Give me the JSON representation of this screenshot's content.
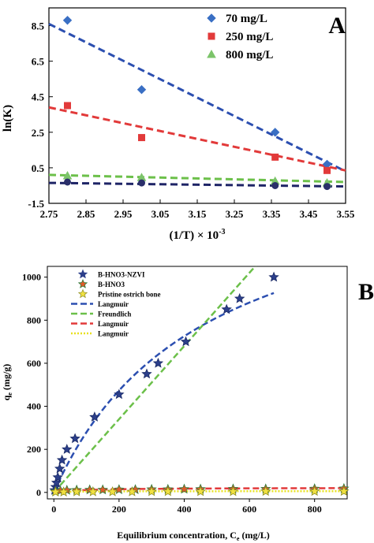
{
  "chart_data": [
    {
      "panel": "A",
      "type": "scatter",
      "xlabel": "(1/T) × 10",
      "xlabel_sup": "-3",
      "ylabel": "ln(K)",
      "xlim": [
        2.75,
        3.55
      ],
      "ylim": [
        -1.5,
        9.5
      ],
      "xticks": [
        "2.75",
        "2.85",
        "2.95",
        "3.05",
        "3.15",
        "3.25",
        "3.35",
        "3.45",
        "3.55"
      ],
      "xtick_values": [
        2.75,
        2.85,
        2.95,
        3.05,
        3.15,
        3.25,
        3.35,
        3.45,
        3.55
      ],
      "yticks": [
        "8.5",
        "6.5",
        "4.5",
        "2.5",
        "0.5",
        "-1.5"
      ],
      "ytick_values": [
        8.5,
        6.5,
        4.5,
        2.5,
        0.5,
        -1.5
      ],
      "series": [
        {
          "name": "70 mg/L",
          "marker": "diamond",
          "color": "#3a6fc4",
          "x": [
            2.8,
            3.0,
            3.36,
            3.5
          ],
          "y": [
            8.8,
            4.9,
            2.5,
            0.7
          ],
          "fit": {
            "x": [
              2.75,
              3.55
            ],
            "y": [
              8.6,
              0.3
            ],
            "color": "#2c4fb0"
          }
        },
        {
          "name": "250 mg/L",
          "marker": "square",
          "color": "#e23a3a",
          "x": [
            2.8,
            3.0,
            3.36,
            3.5
          ],
          "y": [
            4.0,
            2.2,
            1.1,
            0.35
          ],
          "fit": {
            "x": [
              2.75,
              3.55
            ],
            "y": [
              3.9,
              0.35
            ],
            "color": "#e23a3a"
          }
        },
        {
          "name": "800 mg/L",
          "marker": "triangle",
          "color": "#7cc46a",
          "x": [
            2.8,
            3.0,
            3.36,
            3.5
          ],
          "y": [
            0.05,
            -0.05,
            -0.25,
            -0.35
          ],
          "fit": {
            "x": [
              2.75,
              3.55
            ],
            "y": [
              0.1,
              -0.3
            ],
            "color": "#6cc04a"
          }
        },
        {
          "name": "",
          "marker": "circle",
          "color": "#2a2f6a",
          "x": [
            2.8,
            3.0,
            3.36,
            3.5
          ],
          "y": [
            -0.3,
            -0.35,
            -0.5,
            -0.55
          ],
          "fit": {
            "x": [
              2.75,
              3.55
            ],
            "y": [
              -0.35,
              -0.55
            ],
            "color": "#1e2466"
          }
        }
      ]
    },
    {
      "panel": "B",
      "type": "scatter",
      "xlabel": "Equilibrium concentration, C",
      "xlabel_sub": "e",
      "xlabel_unit": " (mg/L)",
      "ylabel": "q",
      "ylabel_sub": "e",
      "ylabel_unit": " (mg/g)",
      "xlim": [
        -20,
        900
      ],
      "ylim": [
        -30,
        1050
      ],
      "xticks": [
        "0",
        "200",
        "400",
        "600",
        "800"
      ],
      "xtick_values": [
        0,
        200,
        400,
        600,
        800
      ],
      "yticks": [
        "0",
        "200",
        "400",
        "600",
        "800",
        "1000"
      ],
      "ytick_values": [
        0,
        200,
        400,
        600,
        800,
        1000
      ],
      "legend": {
        "placement": "top-left",
        "entries": [
          {
            "label": "B-HNO3-NZVI",
            "kind": "star",
            "fill": "#2c3f8a",
            "stroke": "#2c3f8a"
          },
          {
            "label": "B-HNO3",
            "kind": "star",
            "fill": "#e05a2a",
            "stroke": "#2c7a3a"
          },
          {
            "label": "Pristine ostrich bone",
            "kind": "star",
            "fill": "#f0e040",
            "stroke": "#999933"
          },
          {
            "label": "Langmuir",
            "kind": "line",
            "color": "#2c4fb0",
            "dash": "8,4"
          },
          {
            "label": "Freundlich",
            "kind": "line",
            "color": "#6cc04a",
            "dash": "8,4"
          },
          {
            "label": "Langmuir",
            "kind": "line",
            "color": "#e23a3a",
            "dash": "8,4"
          },
          {
            "label": "Langmuir",
            "kind": "line",
            "color": "#e8e020",
            "dash": "2,2"
          }
        ]
      },
      "series": [
        {
          "name": "B-HNO3-NZVI",
          "marker": "star",
          "fill": "#2c3f8a",
          "x": [
            2,
            5,
            8,
            12,
            18,
            25,
            40,
            65,
            125,
            200,
            285,
            320,
            405,
            530,
            570,
            675
          ],
          "y": [
            10,
            25,
            45,
            70,
            110,
            150,
            200,
            250,
            350,
            455,
            550,
            600,
            700,
            850,
            900,
            1000
          ]
        },
        {
          "name": "B-HNO3",
          "marker": "star",
          "fill": "#e05a2a",
          "x": [
            5,
            20,
            40,
            70,
            110,
            150,
            200,
            250,
            300,
            350,
            400,
            450,
            550,
            650,
            800,
            890
          ],
          "y": [
            5,
            8,
            10,
            11,
            12,
            12,
            13,
            13,
            14,
            14,
            15,
            15,
            16,
            16,
            17,
            18
          ]
        },
        {
          "name": "Pristine ostrich bone",
          "marker": "star",
          "fill": "#f0e040",
          "x": [
            5,
            30,
            70,
            120,
            180,
            240,
            300,
            350,
            450,
            550,
            650,
            800,
            890
          ],
          "y": [
            2,
            2,
            3,
            3,
            3,
            3,
            4,
            4,
            4,
            4,
            5,
            5,
            5
          ]
        }
      ],
      "fits": [
        {
          "name": "Langmuir",
          "color": "#2c4fb0",
          "dash": "8,4",
          "qmax": 1550,
          "KL": 0.0022,
          "xmax": 675
        },
        {
          "name": "Freundlich",
          "color": "#6cc04a",
          "dash": "8,4",
          "KF": 1.7,
          "n": 1.0,
          "xmax": 620
        },
        {
          "name": "Langmuir",
          "color": "#e23a3a",
          "dash": "8,4",
          "qmax": 22,
          "KL": 0.01,
          "xmax": 890
        },
        {
          "name": "Langmuir",
          "color": "#e8e020",
          "dash": "2,2",
          "qmax": 6,
          "KL": 0.02,
          "xmax": 890
        }
      ]
    }
  ],
  "panel_labels": [
    "A",
    "B"
  ]
}
